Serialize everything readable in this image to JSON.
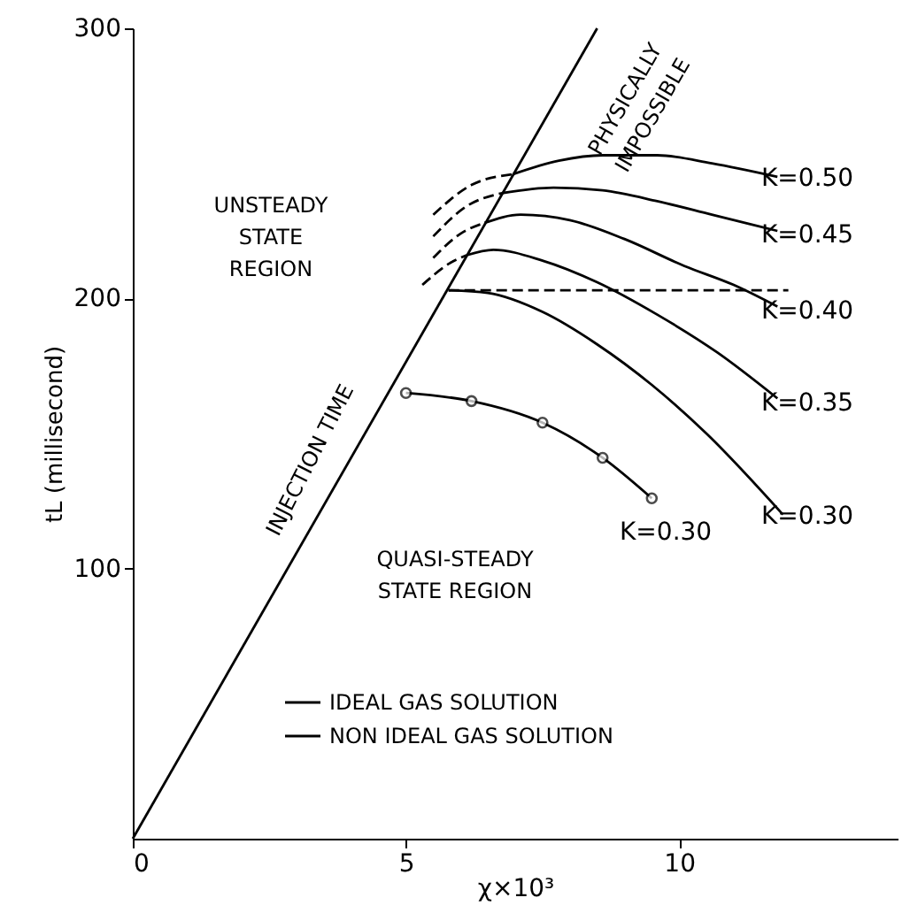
{
  "chart_data": {
    "type": "line",
    "xlabel": "χ×10³",
    "ylabel": "tL (millisecond)",
    "xlim": [
      0,
      14
    ],
    "ylim": [
      0,
      300
    ],
    "xticks": [
      0,
      5,
      10
    ],
    "yticks": [
      100,
      200,
      300
    ],
    "grid": false,
    "legend": "bottom",
    "series": [
      {
        "color": "#000000",
        "x": [
          0,
          8.5
        ],
        "values": [
          0,
          300
        ]
      },
      {
        "name": "IDEAL GAS SOLUTION",
        "color": "#000000",
        "x": [
          6.96,
          7.8,
          8.6,
          9.6,
          10.6,
          11.8
        ],
        "values": [
          246,
          251,
          253,
          253,
          250,
          245
        ]
      },
      {
        "name": "NON IDEAL GAS SOLUTION",
        "color": "#000000",
        "marker": "circle",
        "x": [
          5.0,
          6.2,
          7.5,
          8.6,
          9.5
        ],
        "values": [
          165,
          162,
          154,
          141,
          126
        ]
      },
      {
        "color": "#000000",
        "x": [
          6.76,
          7.7,
          8.6,
          9.6,
          10.6,
          11.8
        ],
        "values": [
          239,
          241,
          240,
          236,
          231,
          225
        ]
      },
      {
        "color": "#000000",
        "x": [
          6.44,
          7.1,
          8.0,
          9.0,
          10.1,
          11.0,
          11.8
        ],
        "values": [
          228,
          231,
          229,
          222,
          212,
          205,
          197
        ]
      },
      {
        "color": "#000000",
        "x": [
          6.11,
          6.6,
          7.5,
          8.5,
          9.6,
          10.7,
          11.8
        ],
        "values": [
          216,
          218,
          214,
          206,
          194,
          180,
          163
        ]
      },
      {
        "color": "#000000",
        "x": [
          5.78,
          6.5,
          7.5,
          8.5,
          9.5,
          10.5,
          11.9
        ],
        "values": [
          203,
          202,
          195,
          183,
          168,
          150,
          120
        ]
      },
      {
        "color": "#000000",
        "line_style": "dashed",
        "x": [
          5.5,
          6.2,
          6.96
        ],
        "values": [
          231,
          242,
          246
        ]
      },
      {
        "color": "#000000",
        "line_style": "dashed",
        "x": [
          5.5,
          6.1,
          6.76
        ],
        "values": [
          223,
          234,
          239
        ]
      },
      {
        "color": "#000000",
        "line_style": "dashed",
        "x": [
          5.5,
          6.0,
          6.44
        ],
        "values": [
          215,
          224,
          228
        ]
      },
      {
        "color": "#000000",
        "line_style": "dashed",
        "x": [
          5.3,
          5.8,
          6.11
        ],
        "values": [
          205,
          213,
          216
        ]
      },
      {
        "color": "#000000",
        "line_style": "dashed",
        "x": [
          5.78,
          12.0
        ],
        "values": [
          203,
          203
        ]
      }
    ],
    "annotations": [
      "K=0.50",
      "K=0.45",
      "K=0.40",
      "K=0.35",
      "K=0.30",
      "K=0.30",
      "INJECTION TIME",
      "UNSTEADY\nSTATE\nREGION",
      "QUASI-STEADY\nSTATE REGION",
      "PHYSICALLY\nIMPOSSIBLE"
    ]
  }
}
